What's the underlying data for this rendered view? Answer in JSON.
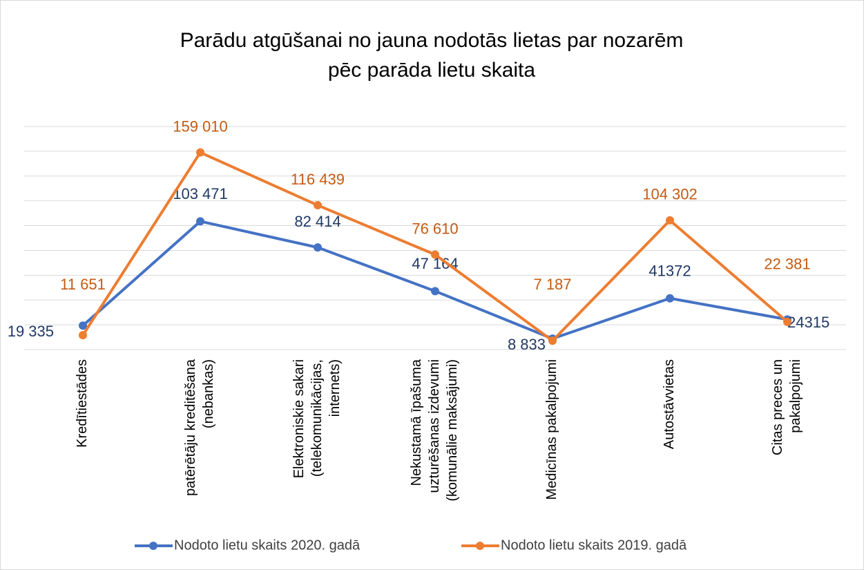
{
  "chart_data": {
    "type": "line",
    "title": [
      "Parādu atgūšanai no jauna nodotās lietas par nozarēm",
      "pēc parāda lietu skaita"
    ],
    "categories": [
      "Kredītiestādes",
      "patērētāju kreditēšana (nebankas)",
      "Elektroniskie sakari (telekomunikācijas, internets)",
      "Nekustamā īpašuma uzturēšanas izdevumi (komunālie maksājumi)",
      "Medicīnas pakalpojumi",
      "Autostāvvietas",
      "Citas preces un pakalpojumi"
    ],
    "series": [
      {
        "name": "Nodoto lietu skaits 2020. gadā",
        "color": "#4472c4",
        "values": [
          19335,
          103471,
          82414,
          47164,
          8833,
          41372,
          24315
        ],
        "value_labels": [
          "19 335",
          "103 471",
          "82 414",
          "47 164",
          "8 833",
          "41372",
          "24315"
        ]
      },
      {
        "name": "Nodoto lietu skaits 2019. gadā",
        "color": "#ed7d31",
        "values": [
          11651,
          159010,
          116439,
          76610,
          7187,
          104302,
          22381
        ],
        "value_labels": [
          "11 651",
          "159 010",
          "116 439",
          "76 610",
          "7 187",
          "104 302",
          "22 381"
        ]
      }
    ],
    "ylim": [
      0,
      180000
    ],
    "yticks": [
      0,
      20000,
      40000,
      60000,
      80000,
      100000,
      120000,
      140000,
      160000,
      180000
    ],
    "grid": true,
    "tick_labels": false,
    "legend": "bottom"
  }
}
